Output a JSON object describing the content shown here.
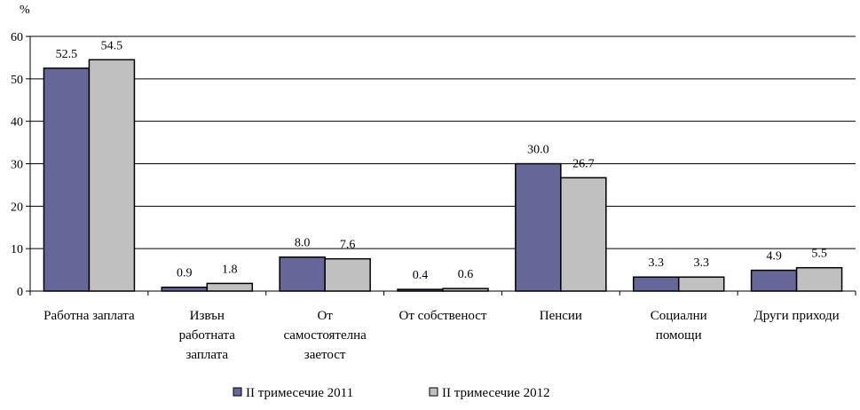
{
  "chart_data": {
    "type": "bar",
    "ylabel": "%",
    "ylim": [
      0,
      60
    ],
    "yticks": [
      0,
      10,
      20,
      30,
      40,
      50,
      60
    ],
    "grid": true,
    "legend_position": "bottom",
    "categories": [
      [
        "Работна заплата"
      ],
      [
        "Извън",
        "работната",
        "заплата"
      ],
      [
        "От",
        "самостоятелна",
        "заетост"
      ],
      [
        "От собственост"
      ],
      [
        "Пенсии"
      ],
      [
        "Социални",
        "помощи"
      ],
      [
        "Други приходи"
      ]
    ],
    "series": [
      {
        "name": "II  тримесечие 2011",
        "color": "#666699",
        "values": [
          52.5,
          0.9,
          8.0,
          0.4,
          30.0,
          3.3,
          4.9
        ],
        "labels": [
          "52.5",
          "0.9",
          "8.0",
          "0.4",
          "30.0",
          "3.3",
          "4.9"
        ]
      },
      {
        "name": "II  тримесечие 2012",
        "color": "#c0c0c0",
        "values": [
          54.5,
          1.8,
          7.6,
          0.6,
          26.7,
          3.3,
          5.5
        ],
        "labels": [
          "54.5",
          "1.8",
          "7.6",
          "0.6",
          "26.7",
          "3.3",
          "5.5"
        ]
      }
    ]
  }
}
